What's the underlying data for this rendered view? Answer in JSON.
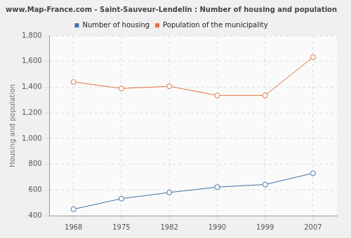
{
  "chart_data": {
    "type": "line",
    "title": "www.Map-France.com - Saint-Sauveur-Lendelin : Number of housing and population",
    "y_label": "Housing and population",
    "categories": [
      "1968",
      "1975",
      "1982",
      "1990",
      "1999",
      "2007"
    ],
    "series": [
      {
        "name": "Number of housing",
        "color": "#3e6fa5",
        "values": [
          450,
          532,
          580,
          622,
          642,
          730
        ]
      },
      {
        "name": "Population of the municipality",
        "color": "#e2703c",
        "values": [
          1441,
          1390,
          1407,
          1336,
          1336,
          1634
        ]
      }
    ],
    "ylim": [
      400,
      1800
    ],
    "yticks": [
      400,
      600,
      800,
      1000,
      1200,
      1400,
      1600,
      1800
    ],
    "grid": true,
    "legend": "top",
    "marker": "circle"
  }
}
